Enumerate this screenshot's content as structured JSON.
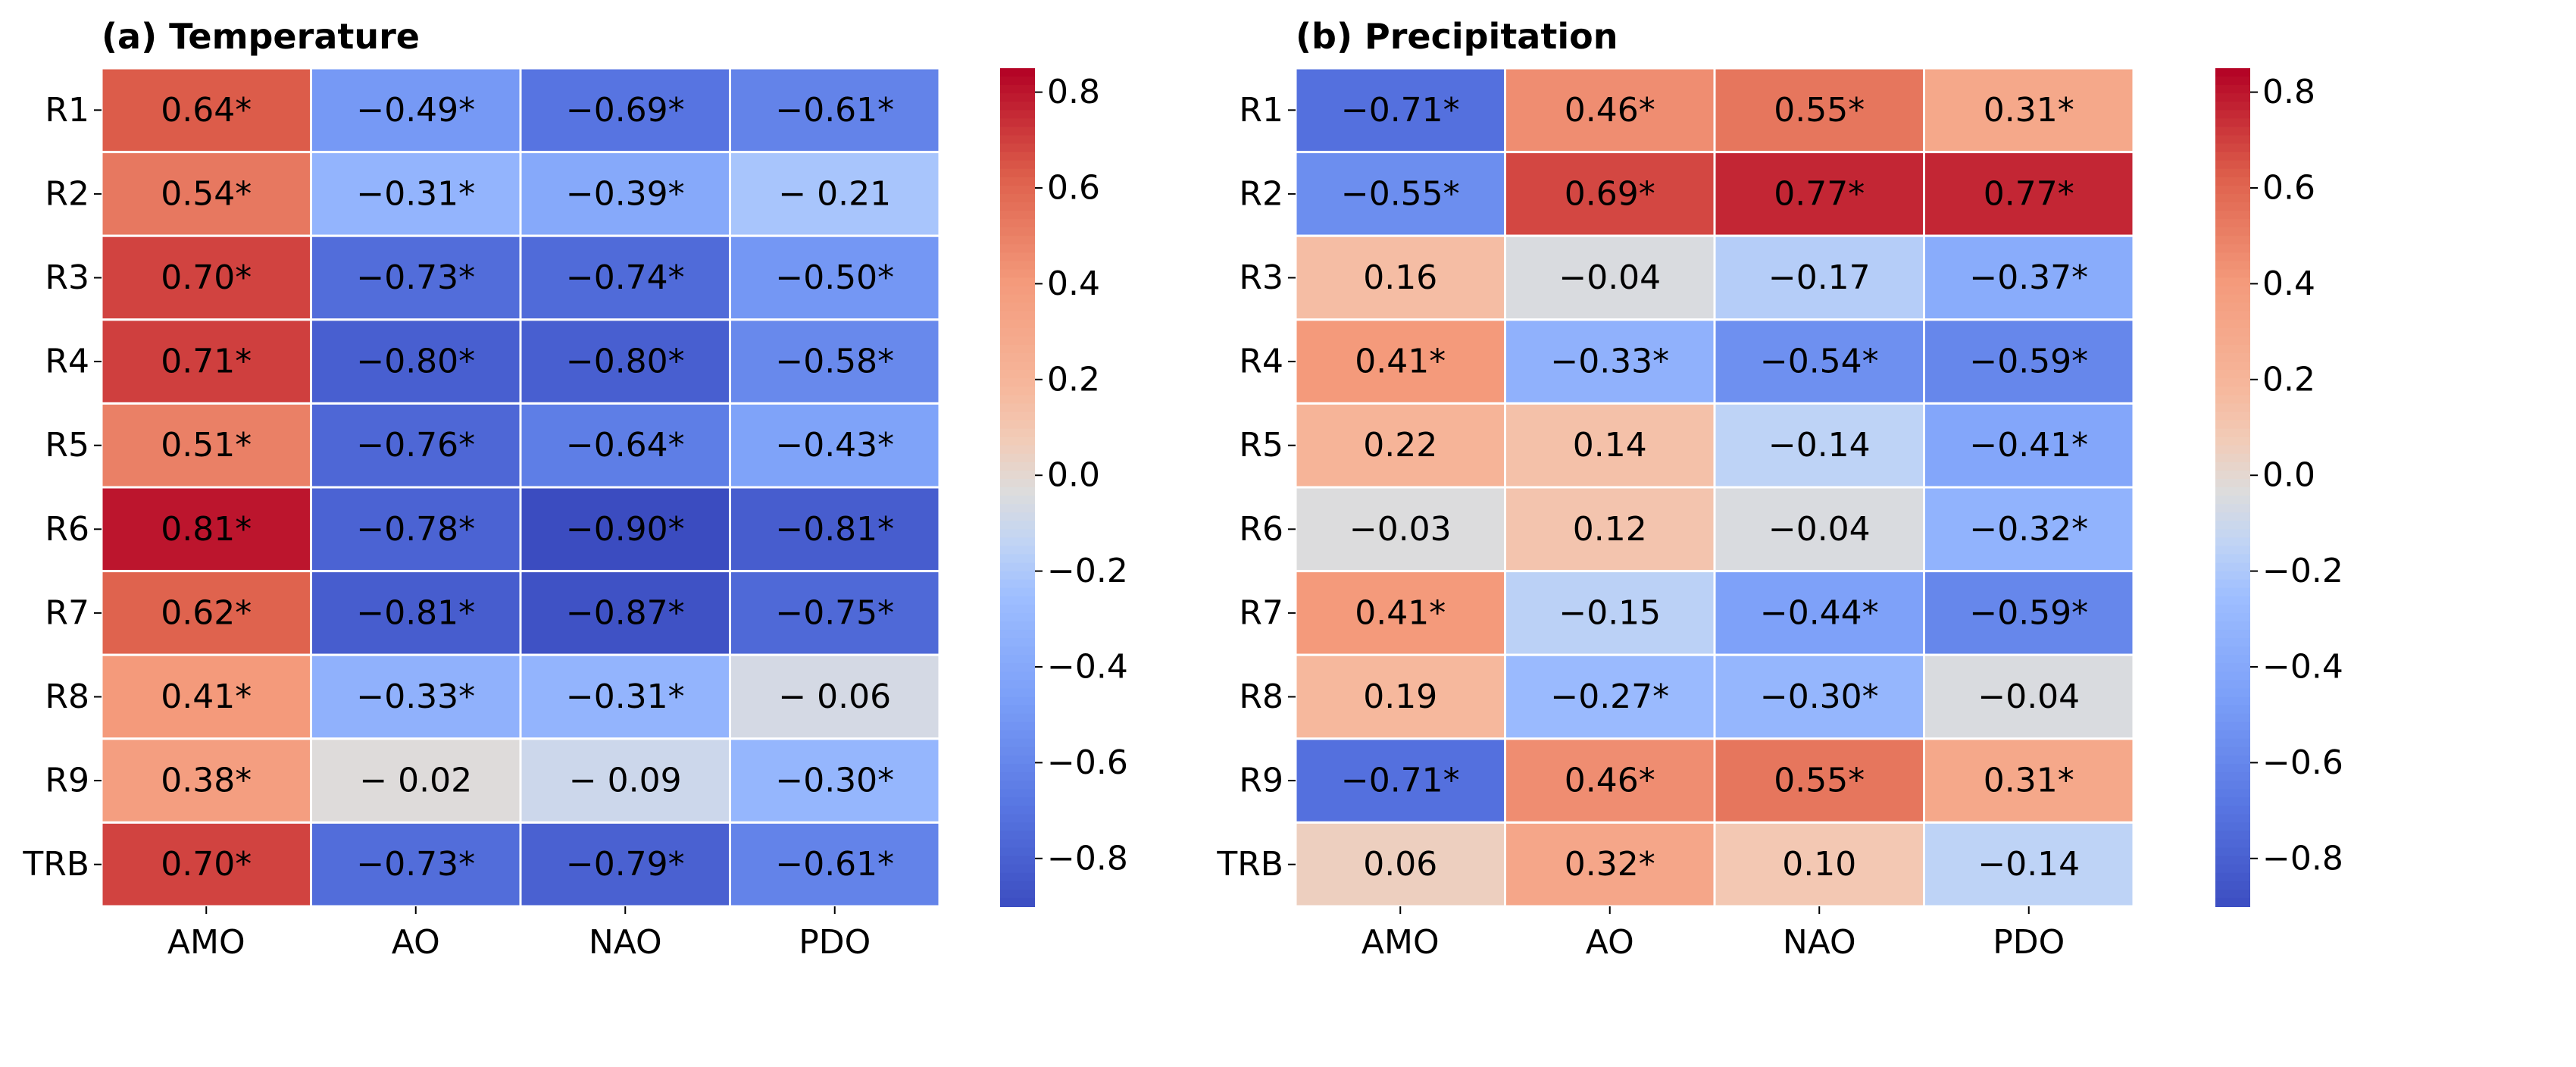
{
  "chart_data": [
    {
      "type": "heatmap",
      "title": "(a) Temperature",
      "rows": [
        "R1",
        "R2",
        "R3",
        "R4",
        "R5",
        "R6",
        "R7",
        "R8",
        "R9",
        "TRB"
      ],
      "columns": [
        "AMO",
        "AO",
        "NAO",
        "PDO"
      ],
      "values": [
        [
          0.64,
          -0.49,
          -0.69,
          -0.61
        ],
        [
          0.54,
          -0.31,
          -0.39,
          -0.21
        ],
        [
          0.7,
          -0.73,
          -0.74,
          -0.5
        ],
        [
          0.71,
          -0.8,
          -0.8,
          -0.58
        ],
        [
          0.51,
          -0.76,
          -0.64,
          -0.43
        ],
        [
          0.81,
          -0.78,
          -0.9,
          -0.81
        ],
        [
          0.62,
          -0.81,
          -0.87,
          -0.75
        ],
        [
          0.41,
          -0.33,
          -0.31,
          -0.06
        ],
        [
          0.38,
          -0.02,
          -0.09,
          -0.3
        ],
        [
          0.7,
          -0.73,
          -0.79,
          -0.61
        ]
      ],
      "labels": [
        [
          "0.64*",
          "−0.49*",
          "−0.69*",
          "−0.61*"
        ],
        [
          "0.54*",
          "−0.31*",
          "−0.39*",
          "− 0.21"
        ],
        [
          "0.70*",
          "−0.73*",
          "−0.74*",
          "−0.50*"
        ],
        [
          "0.71*",
          "−0.80*",
          "−0.80*",
          "−0.58*"
        ],
        [
          "0.51*",
          "−0.76*",
          "−0.64*",
          "−0.43*"
        ],
        [
          "0.81*",
          "−0.78*",
          "−0.90*",
          "−0.81*"
        ],
        [
          "0.62*",
          "−0.81*",
          "−0.87*",
          "−0.75*"
        ],
        [
          "0.41*",
          "−0.33*",
          "−0.31*",
          "− 0.06"
        ],
        [
          "0.38*",
          "− 0.02",
          "− 0.09",
          "−0.30*"
        ],
        [
          "0.70*",
          "−0.73*",
          "−0.79*",
          "−0.61*"
        ]
      ],
      "colorbar": {
        "range": [
          -0.9,
          0.85
        ],
        "ticks": [
          0.8,
          0.6,
          0.4,
          0.2,
          0.0,
          -0.2,
          -0.4,
          -0.6,
          -0.8
        ],
        "tick_labels": [
          "0.8",
          "0.6",
          "0.4",
          "0.2",
          "0.0",
          "−0.2",
          "−0.4",
          "−0.6",
          "−0.8"
        ],
        "colormap": "coolwarm"
      }
    },
    {
      "type": "heatmap",
      "title": "(b) Precipitation",
      "rows": [
        "R1",
        "R2",
        "R3",
        "R4",
        "R5",
        "R6",
        "R7",
        "R8",
        "R9",
        "TRB"
      ],
      "columns": [
        "AMO",
        "AO",
        "NAO",
        "PDO"
      ],
      "values": [
        [
          -0.71,
          0.46,
          0.55,
          0.31
        ],
        [
          -0.55,
          0.69,
          0.77,
          0.77
        ],
        [
          0.16,
          -0.04,
          -0.17,
          -0.37
        ],
        [
          0.41,
          -0.33,
          -0.54,
          -0.59
        ],
        [
          0.22,
          0.14,
          -0.14,
          -0.41
        ],
        [
          -0.03,
          0.12,
          -0.04,
          -0.32
        ],
        [
          0.41,
          -0.15,
          -0.44,
          -0.59
        ],
        [
          0.19,
          -0.27,
          -0.3,
          -0.04
        ],
        [
          -0.71,
          0.46,
          0.55,
          0.31
        ],
        [
          0.06,
          0.32,
          0.1,
          -0.14
        ]
      ],
      "labels": [
        [
          "−0.71*",
          "0.46*",
          "0.55*",
          "0.31*"
        ],
        [
          "−0.55*",
          "0.69*",
          "0.77*",
          "0.77*"
        ],
        [
          "0.16",
          "−0.04",
          "−0.17",
          "−0.37*"
        ],
        [
          "0.41*",
          "−0.33*",
          "−0.54*",
          "−0.59*"
        ],
        [
          "0.22",
          "0.14",
          "−0.14",
          "−0.41*"
        ],
        [
          "−0.03",
          "0.12",
          "−0.04",
          "−0.32*"
        ],
        [
          "0.41*",
          "−0.15",
          "−0.44*",
          "−0.59*"
        ],
        [
          "0.19",
          "−0.27*",
          "−0.30*",
          "−0.04"
        ],
        [
          "−0.71*",
          "0.46*",
          "0.55*",
          "0.31*"
        ],
        [
          "0.06",
          "0.32*",
          "0.10",
          "−0.14"
        ]
      ],
      "colorbar": {
        "range": [
          -0.9,
          0.85
        ],
        "ticks": [
          0.8,
          0.6,
          0.4,
          0.2,
          0.0,
          -0.2,
          -0.4,
          -0.6,
          -0.8
        ],
        "tick_labels": [
          "0.8",
          "0.6",
          "0.4",
          "0.2",
          "0.0",
          "−0.2",
          "−0.4",
          "−0.6",
          "−0.8"
        ],
        "colormap": "coolwarm"
      }
    }
  ]
}
